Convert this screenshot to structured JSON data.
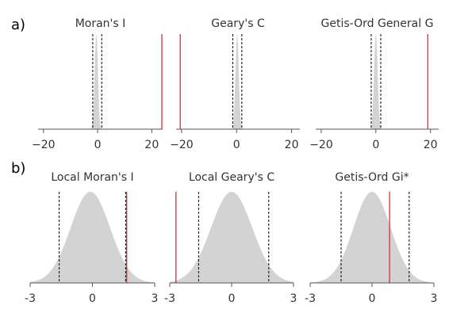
{
  "row_labels": {
    "a": "a)",
    "b": "b)"
  },
  "colors": {
    "density": "#d3d3d3",
    "observed": "#e32a2a",
    "ci": "#000000",
    "axis": "#555555"
  },
  "chart_data": [
    {
      "type": "area",
      "title": "Moran's I",
      "xlim": [
        -22,
        24
      ],
      "ylim": [
        0,
        1
      ],
      "ticks": [
        -20,
        0,
        20
      ],
      "tick_labels": [
        "−20",
        "0",
        "20"
      ],
      "density": {
        "mean": -0.5,
        "sd": 0.6
      },
      "ci": [
        -1.8,
        1.5
      ],
      "observed": 23.7
    },
    {
      "type": "area",
      "title": "Geary's C",
      "xlim": [
        -22,
        23
      ],
      "ylim": [
        0,
        1
      ],
      "ticks": [
        -20,
        0,
        20
      ],
      "tick_labels": [
        "−20",
        "0",
        "20"
      ],
      "density": {
        "mean": 0.2,
        "sd": 0.6
      },
      "ci": [
        -1.4,
        1.9
      ],
      "observed": -20.5
    },
    {
      "type": "area",
      "title": "Getis-Ord General G",
      "xlim": [
        -22,
        23
      ],
      "ylim": [
        0,
        1
      ],
      "ticks": [
        -20,
        0,
        20
      ],
      "tick_labels": [
        "−20",
        "0",
        "20"
      ],
      "density": {
        "mean": 0.0,
        "sd": 0.65
      },
      "ci": [
        -1.7,
        1.8
      ],
      "observed": 19.0
    },
    {
      "type": "area",
      "title": "Local Moran's I",
      "xlim": [
        -3,
        3
      ],
      "ylim": [
        0,
        1
      ],
      "ticks": [
        -3,
        0,
        3
      ],
      "tick_labels": [
        "-3",
        "0",
        "3"
      ],
      "density": {
        "mean": -0.1,
        "sd": 0.95
      },
      "ci": [
        -1.6,
        1.6
      ],
      "observed": 1.65
    },
    {
      "type": "area",
      "title": "Local Geary's C",
      "xlim": [
        -3,
        3
      ],
      "ylim": [
        0,
        1
      ],
      "ticks": [
        -3,
        0,
        3
      ],
      "tick_labels": [
        "-3",
        "0",
        "3"
      ],
      "density": {
        "mean": 0.0,
        "sd": 1.0
      },
      "ci": [
        -1.6,
        1.8
      ],
      "observed": -2.7
    },
    {
      "type": "area",
      "title": "Getis-Ord Gi*",
      "xlim": [
        -3,
        3
      ],
      "ylim": [
        0,
        1
      ],
      "ticks": [
        -3,
        0,
        3
      ],
      "tick_labels": [
        "-3",
        "0",
        "3"
      ],
      "density": {
        "mean": 0.0,
        "sd": 0.9
      },
      "ci": [
        -1.5,
        1.8
      ],
      "observed": 0.85
    }
  ]
}
